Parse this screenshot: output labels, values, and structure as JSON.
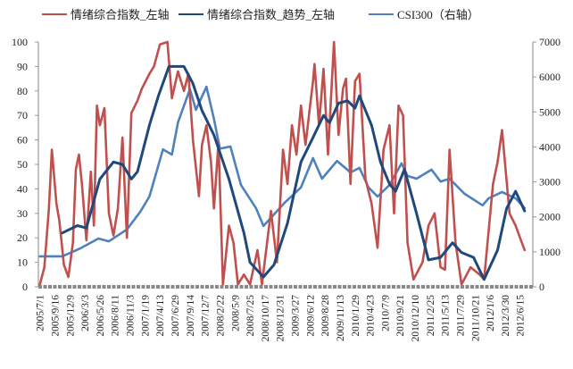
{
  "chart_data": {
    "type": "line",
    "title": "",
    "legend_position": "top",
    "x_categories": [
      "2005/7/1",
      "2005/9/16",
      "2005/12/9",
      "2006/3/3",
      "2006/5/26",
      "2006/8/11",
      "2006/11/3",
      "2007/1/19",
      "2007/4/13",
      "2007/6/29",
      "2007/9/14",
      "2007/12/7",
      "2008/2/22",
      "2008/5/9",
      "2008/7/25",
      "2008/10/17",
      "2008/12/31",
      "2009/3/27",
      "2009/6/12",
      "2009/8/28",
      "2009/11/13",
      "2010/1/29",
      "2010/4/23",
      "2010/7/9",
      "2010/9/21",
      "2010/12/10",
      "2011/2/25",
      "2011/5/13",
      "2011/7/29",
      "2011/10/21",
      "2012/1/6",
      "2012/3/30",
      "2012/6/15"
    ],
    "x_note": "series x values are positions measured in tick-label intervals (0 = 2005/7/1, 32 = 2012/6/15)",
    "y_left": {
      "range": [
        0,
        100
      ],
      "ticks": [
        "0",
        "10",
        "20",
        "30",
        "40",
        "50",
        "60",
        "70",
        "80",
        "90",
        "100"
      ]
    },
    "y_right": {
      "range": [
        0,
        7000
      ],
      "ticks": [
        "0",
        "1000",
        "2000",
        "3000",
        "4000",
        "5000",
        "6000",
        "7000"
      ]
    },
    "series": [
      {
        "name": "情绪综合指数_左轴",
        "axis": "left",
        "color": "#c0504d",
        "points": [
          [
            0,
            1
          ],
          [
            0.3,
            8
          ],
          [
            0.6,
            32
          ],
          [
            0.8,
            56
          ],
          [
            1.1,
            34
          ],
          [
            1.3,
            27
          ],
          [
            1.6,
            9
          ],
          [
            1.9,
            4
          ],
          [
            2.2,
            18
          ],
          [
            2.4,
            48
          ],
          [
            2.6,
            54
          ],
          [
            2.8,
            42
          ],
          [
            3.1,
            19
          ],
          [
            3.4,
            47
          ],
          [
            3.6,
            25
          ],
          [
            3.8,
            74
          ],
          [
            4.0,
            66
          ],
          [
            4.3,
            73
          ],
          [
            4.6,
            30
          ],
          [
            4.9,
            21
          ],
          [
            5.2,
            32
          ],
          [
            5.5,
            61
          ],
          [
            5.8,
            20
          ],
          [
            6.1,
            71
          ],
          [
            6.5,
            76
          ],
          [
            6.8,
            81
          ],
          [
            7.3,
            87
          ],
          [
            7.6,
            90
          ],
          [
            8.0,
            99
          ],
          [
            8.5,
            100
          ],
          [
            8.8,
            77
          ],
          [
            9.2,
            88
          ],
          [
            9.6,
            80
          ],
          [
            9.9,
            87
          ],
          [
            10.2,
            60
          ],
          [
            10.6,
            37
          ],
          [
            10.8,
            58
          ],
          [
            11.1,
            66
          ],
          [
            11.4,
            51
          ],
          [
            11.6,
            32
          ],
          [
            11.9,
            59
          ],
          [
            12.2,
            1
          ],
          [
            12.6,
            25
          ],
          [
            12.9,
            18
          ],
          [
            13.2,
            1
          ],
          [
            13.6,
            5
          ],
          [
            14.0,
            1
          ],
          [
            14.5,
            15
          ],
          [
            14.8,
            1
          ],
          [
            15.4,
            31
          ],
          [
            15.8,
            10
          ],
          [
            16.2,
            56
          ],
          [
            16.5,
            42
          ],
          [
            16.8,
            66
          ],
          [
            17.1,
            54
          ],
          [
            17.4,
            74
          ],
          [
            17.7,
            58
          ],
          [
            18.2,
            84
          ],
          [
            18.3,
            91
          ],
          [
            18.6,
            66
          ],
          [
            18.9,
            89
          ],
          [
            19.2,
            54
          ],
          [
            19.6,
            100
          ],
          [
            19.9,
            62
          ],
          [
            20.2,
            81
          ],
          [
            20.4,
            85
          ],
          [
            20.7,
            42
          ],
          [
            21.0,
            84
          ],
          [
            21.3,
            87
          ],
          [
            21.7,
            44
          ],
          [
            22.1,
            34
          ],
          [
            22.5,
            16
          ],
          [
            22.9,
            56
          ],
          [
            23.3,
            66
          ],
          [
            23.6,
            30
          ],
          [
            23.9,
            74
          ],
          [
            24.2,
            70
          ],
          [
            24.5,
            18
          ],
          [
            24.9,
            3
          ],
          [
            25.5,
            10
          ],
          [
            25.9,
            25
          ],
          [
            26.3,
            30
          ],
          [
            26.7,
            8
          ],
          [
            27.0,
            7
          ],
          [
            27.3,
            56
          ],
          [
            27.7,
            18
          ],
          [
            28.1,
            1
          ],
          [
            28.7,
            8
          ],
          [
            29.3,
            5
          ],
          [
            29.6,
            3
          ],
          [
            30.2,
            42
          ],
          [
            30.5,
            51
          ],
          [
            30.8,
            64
          ],
          [
            31.3,
            30
          ],
          [
            31.7,
            25
          ],
          [
            32.0,
            20
          ],
          [
            32.3,
            15
          ]
        ]
      },
      {
        "name": "情绪综合指数_趋势_左轴",
        "axis": "left",
        "color": "#1f497d",
        "points": [
          [
            1.5,
            22
          ],
          [
            2.5,
            25
          ],
          [
            3.1,
            24
          ],
          [
            4.0,
            44
          ],
          [
            4.9,
            51
          ],
          [
            5.5,
            50
          ],
          [
            6.1,
            44
          ],
          [
            6.5,
            47
          ],
          [
            7.3,
            66
          ],
          [
            7.9,
            78
          ],
          [
            8.6,
            90
          ],
          [
            9.6,
            90
          ],
          [
            10.2,
            83
          ],
          [
            10.8,
            72
          ],
          [
            11.6,
            62
          ],
          [
            12.6,
            44
          ],
          [
            13.6,
            22
          ],
          [
            14.0,
            10
          ],
          [
            14.9,
            4
          ],
          [
            15.6,
            9
          ],
          [
            16.5,
            26
          ],
          [
            17.4,
            51
          ],
          [
            18.2,
            61
          ],
          [
            18.9,
            70
          ],
          [
            19.3,
            67
          ],
          [
            19.9,
            75
          ],
          [
            20.5,
            76
          ],
          [
            21.0,
            73
          ],
          [
            21.3,
            78
          ],
          [
            22.1,
            66
          ],
          [
            22.7,
            51
          ],
          [
            23.3,
            42
          ],
          [
            23.7,
            39
          ],
          [
            24.3,
            48
          ],
          [
            25.1,
            30
          ],
          [
            25.9,
            11
          ],
          [
            26.7,
            12
          ],
          [
            27.5,
            18
          ],
          [
            28.1,
            14
          ],
          [
            28.9,
            12
          ],
          [
            29.6,
            3
          ],
          [
            30.5,
            15
          ],
          [
            31.1,
            32
          ],
          [
            31.7,
            39
          ],
          [
            32.3,
            31
          ]
        ]
      },
      {
        "name": "CSI300（右轴）",
        "axis": "right",
        "color": "#4f81bd",
        "points": [
          [
            0,
            870
          ],
          [
            1.5,
            870
          ],
          [
            2.7,
            1100
          ],
          [
            3.9,
            1380
          ],
          [
            4.6,
            1300
          ],
          [
            5.8,
            1640
          ],
          [
            6.7,
            2150
          ],
          [
            7.3,
            2580
          ],
          [
            8.2,
            3930
          ],
          [
            8.8,
            3780
          ],
          [
            9.2,
            4700
          ],
          [
            10.0,
            5650
          ],
          [
            10.4,
            5060
          ],
          [
            11.1,
            5720
          ],
          [
            11.6,
            4800
          ],
          [
            12.0,
            3950
          ],
          [
            12.7,
            4010
          ],
          [
            13.4,
            2910
          ],
          [
            14.4,
            2250
          ],
          [
            14.9,
            1740
          ],
          [
            15.6,
            2070
          ],
          [
            16.3,
            2400
          ],
          [
            17.4,
            2840
          ],
          [
            18.2,
            3680
          ],
          [
            18.8,
            3090
          ],
          [
            19.8,
            3600
          ],
          [
            20.7,
            3270
          ],
          [
            21.3,
            3400
          ],
          [
            21.9,
            2840
          ],
          [
            22.5,
            2580
          ],
          [
            23.3,
            2910
          ],
          [
            24.1,
            3530
          ],
          [
            24.5,
            3170
          ],
          [
            25.1,
            3090
          ],
          [
            26.1,
            3350
          ],
          [
            26.7,
            3010
          ],
          [
            27.3,
            3090
          ],
          [
            28.3,
            2660
          ],
          [
            29.5,
            2330
          ],
          [
            29.9,
            2530
          ],
          [
            30.8,
            2710
          ],
          [
            31.7,
            2530
          ],
          [
            32.3,
            2250
          ]
        ]
      }
    ]
  }
}
